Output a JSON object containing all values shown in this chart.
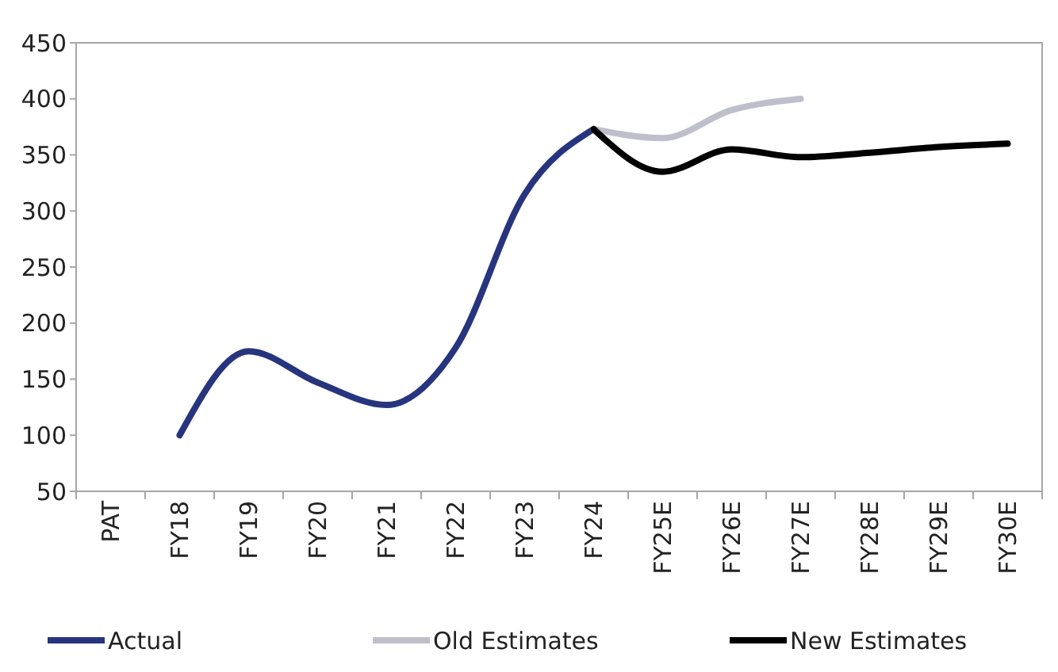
{
  "chart_data": {
    "type": "line",
    "categories": [
      "PAT",
      "FY18",
      "FY19",
      "FY20",
      "FY21",
      "FY22",
      "FY23",
      "FY24",
      "FY25E",
      "FY26E",
      "FY27E",
      "FY28E",
      "FY29E",
      "FY30E"
    ],
    "series": [
      {
        "name": "Actual",
        "color": "#27357e",
        "values": [
          null,
          100,
          175,
          147,
          127,
          178,
          315,
          373,
          null,
          null,
          null,
          null,
          null,
          null
        ]
      },
      {
        "name": "Old Estimates",
        "color": "#bfbfcc",
        "values": [
          null,
          null,
          null,
          null,
          null,
          null,
          null,
          373,
          365,
          390,
          400,
          null,
          null,
          null
        ]
      },
      {
        "name": "New Estimates",
        "color": "#000000",
        "values": [
          null,
          null,
          null,
          null,
          null,
          null,
          null,
          373,
          335,
          355,
          348,
          352,
          357,
          360
        ]
      }
    ],
    "ylim": [
      50,
      450
    ],
    "yticks": [
      50,
      100,
      150,
      200,
      250,
      300,
      350,
      400,
      450
    ],
    "grid": false,
    "legend": "bottom",
    "marker": "none",
    "line_style": "solid"
  }
}
